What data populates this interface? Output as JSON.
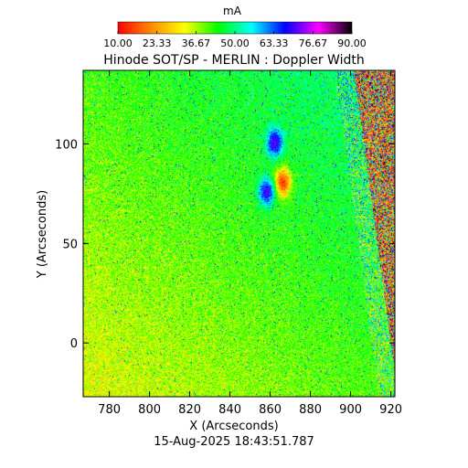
{
  "chart_data": {
    "type": "heatmap",
    "title": "Hinode SOT/SP - MERLIN : Doppler Width",
    "xlabel": "X (Arcseconds)",
    "ylabel": "Y (Arcseconds)",
    "xlim": [
      767,
      922
    ],
    "ylim": [
      -27,
      137
    ],
    "x_ticks": [
      780,
      800,
      820,
      840,
      860,
      880,
      900,
      920
    ],
    "x_tick_labels": [
      "780",
      "800",
      "820",
      "840",
      "860",
      "880",
      "900",
      "920"
    ],
    "y_ticks": [
      0,
      50,
      100
    ],
    "y_tick_labels": [
      "0",
      "50",
      "100"
    ],
    "colorbar": {
      "unit": "mA",
      "range": [
        10.0,
        90.0
      ],
      "tick_values": [
        10.0,
        23.33,
        36.67,
        50.0,
        63.33,
        76.67,
        90.0
      ],
      "tick_labels": [
        "10.00",
        "23.33",
        "36.67",
        "50.00",
        "63.33",
        "76.67",
        "90.00"
      ],
      "colors": [
        "#ff0000",
        "#ff8c00",
        "#ffff00",
        "#00ff00",
        "#00ffff",
        "#0000ff",
        "#ff00ff",
        "#000000"
      ]
    },
    "limb_x_at_top": 900,
    "limb_x_at_bottom": 922,
    "features": [
      {
        "x": 866,
        "y": 81,
        "value": 14
      },
      {
        "x": 862,
        "y": 101,
        "value": 72
      },
      {
        "x": 858,
        "y": 76,
        "value": 70
      }
    ],
    "timestamp": "15-Aug-2025 18:43:51.787"
  }
}
